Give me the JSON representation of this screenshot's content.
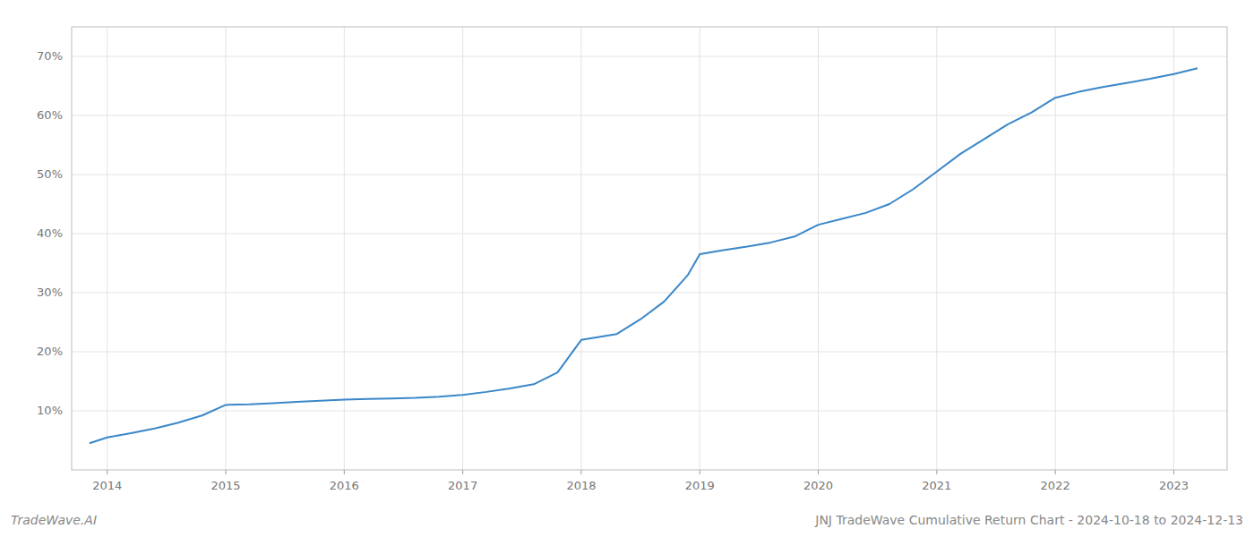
{
  "chart_data": {
    "type": "line",
    "title": "JNJ TradeWave Cumulative Return Chart - 2024-10-18 to 2024-12-13",
    "annotations": [
      "TradeWave.AI"
    ],
    "x": [
      2013.85,
      2014.0,
      2014.2,
      2014.4,
      2014.6,
      2014.8,
      2015.0,
      2015.2,
      2015.4,
      2015.6,
      2015.8,
      2016.0,
      2016.2,
      2016.4,
      2016.6,
      2016.8,
      2017.0,
      2017.2,
      2017.4,
      2017.6,
      2017.8,
      2018.0,
      2018.15,
      2018.3,
      2018.5,
      2018.7,
      2018.9,
      2019.0,
      2019.2,
      2019.4,
      2019.6,
      2019.8,
      2020.0,
      2020.2,
      2020.4,
      2020.6,
      2020.8,
      2021.0,
      2021.2,
      2021.4,
      2021.6,
      2021.8,
      2022.0,
      2022.2,
      2022.4,
      2022.6,
      2022.8,
      2023.0,
      2023.2
    ],
    "values": [
      4.5,
      5.5,
      6.2,
      7.0,
      8.0,
      9.2,
      11.0,
      11.1,
      11.3,
      11.5,
      11.7,
      11.9,
      12.0,
      12.1,
      12.2,
      12.4,
      12.7,
      13.2,
      13.8,
      14.5,
      16.5,
      22.0,
      22.5,
      23.0,
      25.5,
      28.5,
      33.0,
      36.5,
      37.2,
      37.8,
      38.5,
      39.5,
      41.5,
      42.5,
      43.5,
      45.0,
      47.5,
      50.5,
      53.5,
      56.0,
      58.5,
      60.5,
      63.0,
      64.0,
      64.8,
      65.5,
      66.2,
      67.0,
      68.0
    ],
    "color": "#3a87c8",
    "xlim": [
      2013.7,
      2023.45
    ],
    "ylim": [
      0,
      75
    ],
    "xticks": [
      2014,
      2015,
      2016,
      2017,
      2018,
      2019,
      2020,
      2021,
      2022,
      2023
    ],
    "yticks": [
      {
        "value": 10,
        "label": "10%"
      },
      {
        "value": 20,
        "label": "20%"
      },
      {
        "value": 30,
        "label": "30%"
      },
      {
        "value": 40,
        "label": "40%"
      },
      {
        "value": 50,
        "label": "50%"
      },
      {
        "value": 60,
        "label": "60%"
      },
      {
        "value": 70,
        "label": "70%"
      }
    ],
    "grid": true
  }
}
